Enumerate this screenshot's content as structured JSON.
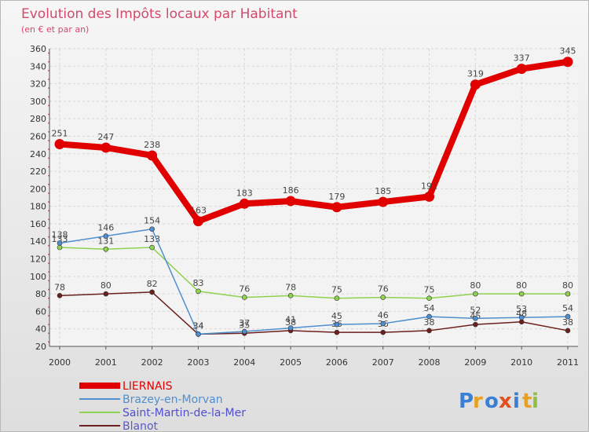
{
  "chart_data": {
    "type": "line",
    "title": "Evolution des Impôts locaux par Habitant",
    "subtitle": "(en € et par an)",
    "xlabel": "",
    "ylabel": "",
    "ylim": [
      20,
      360
    ],
    "yticks": [
      20,
      40,
      60,
      80,
      100,
      120,
      140,
      160,
      180,
      200,
      220,
      240,
      260,
      280,
      300,
      320,
      340,
      360
    ],
    "categories": [
      "2000",
      "2001",
      "2002",
      "2003",
      "2004",
      "2005",
      "2006",
      "2007",
      "2008",
      "2009",
      "2010",
      "2011"
    ],
    "series": [
      {
        "name": "Blanot",
        "color": "#6b1f1f",
        "values": [
          78,
          80,
          82,
          34,
          35,
          38,
          36,
          36,
          38,
          45,
          48,
          38
        ]
      },
      {
        "name": "Saint-Martin-de-la-Mer",
        "color": "#8fd150",
        "values": [
          133,
          131,
          133,
          83,
          76,
          78,
          75,
          76,
          75,
          80,
          80,
          80
        ]
      },
      {
        "name": "Brazey-en-Morvan",
        "color": "#4f8fd0",
        "values": [
          138,
          146,
          154,
          34,
          37,
          41,
          45,
          46,
          54,
          52,
          53,
          54
        ]
      },
      {
        "name": "LIERNAIS",
        "color": "#e00000",
        "values": [
          251,
          247,
          238,
          163,
          183,
          186,
          179,
          185,
          191,
          319,
          337,
          345
        ]
      }
    ],
    "legend": {
      "position": "bottom-left",
      "order": [
        "LIERNAIS",
        "Brazey-en-Morvan",
        "Saint-Martin-de-la-Mer",
        "Blanot"
      ]
    },
    "grid": true
  },
  "branding": {
    "logo_text": "Proxiti",
    "logo_letters": [
      {
        "ch": "P",
        "color": "#3a7fd5"
      },
      {
        "ch": "r",
        "color": "#e8a020"
      },
      {
        "ch": "o",
        "color": "#3a7fd5"
      },
      {
        "ch": "x",
        "color": "#e05020"
      },
      {
        "ch": "i",
        "color": "#3a7fd5"
      },
      {
        "ch": "t",
        "color": "#e8a020"
      },
      {
        "ch": "i",
        "color": "#8fc040"
      }
    ]
  }
}
